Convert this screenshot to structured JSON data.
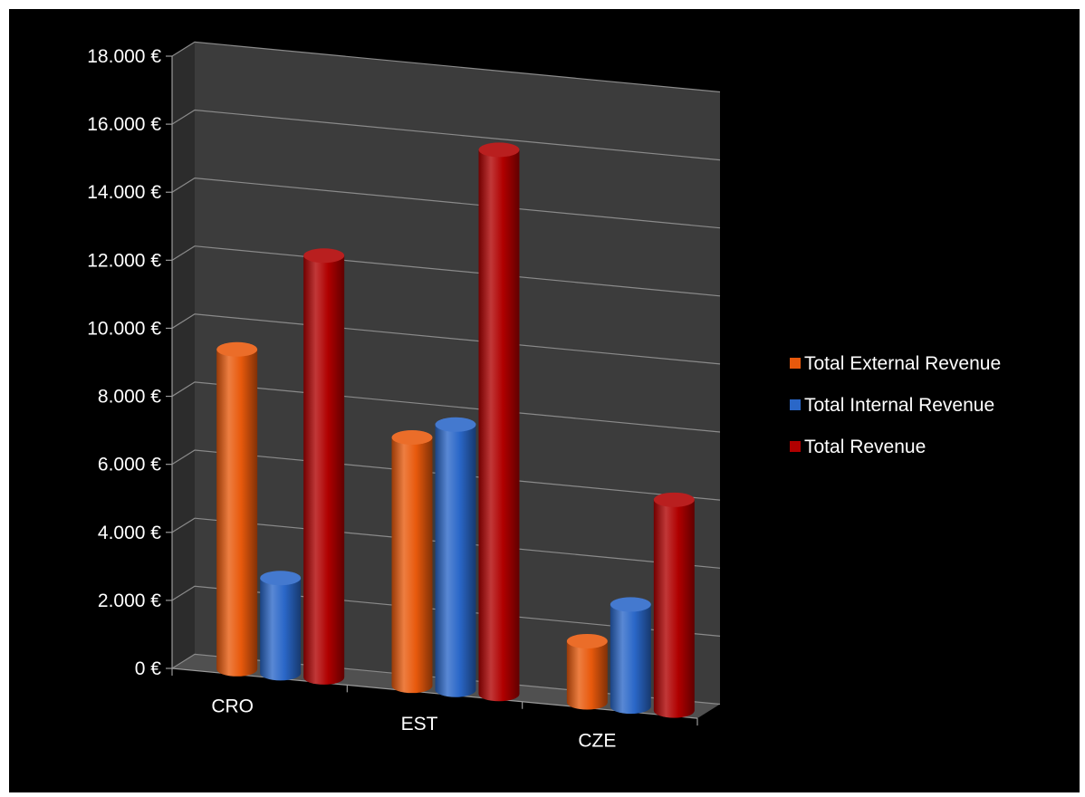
{
  "chart_data": {
    "type": "bar",
    "view": "3d-clustered-cylinder",
    "categories": [
      "CRO",
      "EST",
      "CZE"
    ],
    "series": [
      {
        "name": "Total External Revenue",
        "values": [
          9400,
          7300,
          1800
        ],
        "color": "#e8590c"
      },
      {
        "name": "Total Internal Revenue",
        "values": [
          2800,
          7800,
          3000
        ],
        "color": "#2a67c8"
      },
      {
        "name": "Total Revenue",
        "values": [
          12400,
          16000,
          6200
        ],
        "color": "#b00000"
      }
    ],
    "yticks": [
      "0 €",
      "2.000 €",
      "4.000 €",
      "6.000 €",
      "8.000 €",
      "10.000 €",
      "12.000 €",
      "14.000 €",
      "16.000 €",
      "18.000 €"
    ],
    "ylim": [
      0,
      18000
    ],
    "grid": true,
    "legend_position": "right",
    "background": "#000000",
    "wall_color": "#3c3c3c",
    "floor_color": "#505050",
    "text_color": "#ffffff"
  }
}
